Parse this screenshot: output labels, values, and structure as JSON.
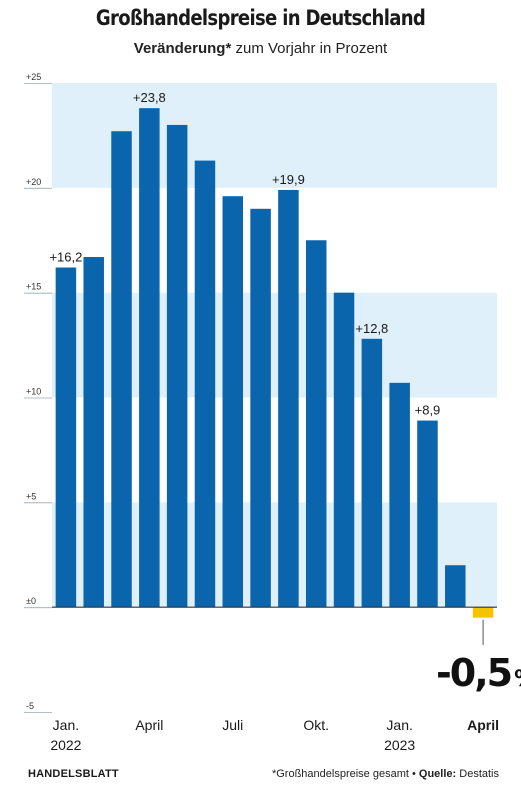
{
  "header": {
    "title": "Großhandelspreise in Deutschland",
    "subtitle_bold": "Veränderung*",
    "subtitle_rest": " zum Vorjahr in Prozent"
  },
  "chart_data": {
    "type": "bar",
    "categories": [
      "Jan. 2022",
      "Feb. 2022",
      "März 2022",
      "April 2022",
      "Mai 2022",
      "Juni 2022",
      "Juli 2022",
      "Aug. 2022",
      "Sep. 2022",
      "Okt. 2022",
      "Nov. 2022",
      "Dez. 2022",
      "Jan. 2023",
      "Feb. 2023",
      "März 2023",
      "April 2023"
    ],
    "values": [
      16.2,
      16.7,
      22.7,
      23.8,
      23.0,
      21.3,
      19.6,
      19.0,
      19.9,
      17.5,
      15.0,
      12.8,
      10.7,
      8.9,
      2.0,
      -0.5
    ],
    "ylim": [
      -5,
      25
    ],
    "yticks": [
      {
        "value": 25,
        "label": "+25"
      },
      {
        "value": 20,
        "label": "+20"
      },
      {
        "value": 15,
        "label": "+15"
      },
      {
        "value": 10,
        "label": "+10"
      },
      {
        "value": 5,
        "label": "+5"
      },
      {
        "value": 0,
        "label": "±0"
      },
      {
        "value": -5,
        "label": "-5"
      }
    ],
    "xticks": [
      {
        "index": 0,
        "line1": "Jan.",
        "line2": "2022",
        "bold": false
      },
      {
        "index": 3,
        "line1": "April",
        "line2": "",
        "bold": false
      },
      {
        "index": 6,
        "line1": "Juli",
        "line2": "",
        "bold": false
      },
      {
        "index": 9,
        "line1": "Okt.",
        "line2": "",
        "bold": false
      },
      {
        "index": 12,
        "line1": "Jan.",
        "line2": "2023",
        "bold": false
      },
      {
        "index": 15,
        "line1": "April",
        "line2": "",
        "bold": true
      }
    ],
    "data_labels": [
      {
        "index": 0,
        "text": "+16,2"
      },
      {
        "index": 3,
        "text": "+23,8"
      },
      {
        "index": 8,
        "text": "+19,9"
      },
      {
        "index": 11,
        "text": "+12,8"
      },
      {
        "index": 13,
        "text": "+8,9"
      }
    ],
    "highlight": {
      "index": 15,
      "value_text": "-0,5",
      "unit": "%"
    },
    "colors": {
      "bar": "#0a65ad",
      "highlight": "#f5c400",
      "band": "#dff0fb",
      "axis": "#333333"
    },
    "grid": "alternating bands"
  },
  "footer": {
    "source_left": "HANDELSBLATT",
    "note": "*Großhandelspreise gesamt",
    "bullet": " • ",
    "source_label": "Quelle:",
    "source": " Destatis"
  }
}
